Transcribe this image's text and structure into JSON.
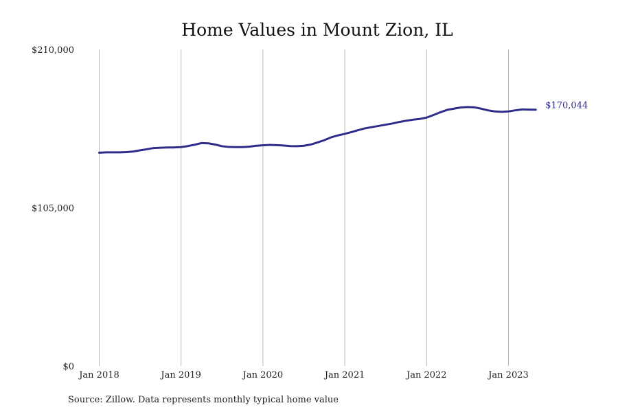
{
  "chart_data": {
    "type": "line",
    "title": "Home Values in Mount Zion, IL",
    "xlabel": "",
    "ylabel": "",
    "ylim": [
      0,
      210000
    ],
    "y_ticks": [
      {
        "value": 0,
        "label": "$0"
      },
      {
        "value": 105000,
        "label": "$105,000"
      },
      {
        "value": 210000,
        "label": "$210,000"
      }
    ],
    "x_ticks": [
      {
        "date": "2018-01",
        "label": "Jan 2018"
      },
      {
        "date": "2019-01",
        "label": "Jan 2019"
      },
      {
        "date": "2020-01",
        "label": "Jan 2020"
      },
      {
        "date": "2021-01",
        "label": "Jan 2021"
      },
      {
        "date": "2022-01",
        "label": "Jan 2022"
      },
      {
        "date": "2023-01",
        "label": "Jan 2023"
      }
    ],
    "grid": "vertical",
    "series": [
      {
        "color": "#2e2d8c",
        "end_label": "$170,044",
        "x": [
          "2018-01",
          "2018-02",
          "2018-03",
          "2018-04",
          "2018-05",
          "2018-06",
          "2018-07",
          "2018-08",
          "2018-09",
          "2018-10",
          "2018-11",
          "2018-12",
          "2019-01",
          "2019-02",
          "2019-03",
          "2019-04",
          "2019-05",
          "2019-06",
          "2019-07",
          "2019-08",
          "2019-09",
          "2019-10",
          "2019-11",
          "2019-12",
          "2020-01",
          "2020-02",
          "2020-03",
          "2020-04",
          "2020-05",
          "2020-06",
          "2020-07",
          "2020-08",
          "2020-09",
          "2020-10",
          "2020-11",
          "2020-12",
          "2021-01",
          "2021-02",
          "2021-03",
          "2021-04",
          "2021-05",
          "2021-06",
          "2021-07",
          "2021-08",
          "2021-09",
          "2021-10",
          "2021-11",
          "2021-12",
          "2022-01",
          "2022-02",
          "2022-03",
          "2022-04",
          "2022-05",
          "2022-06",
          "2022-07",
          "2022-08",
          "2022-09",
          "2022-10",
          "2022-11",
          "2022-12",
          "2023-01",
          "2023-02",
          "2023-03",
          "2023-04",
          "2023-05"
        ],
        "y": [
          141500,
          141700,
          141700,
          141700,
          141900,
          142300,
          143100,
          143800,
          144600,
          144800,
          145000,
          145000,
          145200,
          145900,
          146800,
          147900,
          147700,
          146900,
          145800,
          145300,
          145200,
          145200,
          145500,
          146100,
          146400,
          146700,
          146500,
          146300,
          145900,
          145800,
          146100,
          146900,
          148300,
          149800,
          151700,
          153000,
          154000,
          155200,
          156500,
          157700,
          158500,
          159300,
          160100,
          160900,
          161900,
          162700,
          163400,
          163900,
          164800,
          166500,
          168300,
          169900,
          170700,
          171500,
          171800,
          171600,
          170700,
          169600,
          168900,
          168600,
          168900,
          169600,
          170200,
          170100,
          170044
        ]
      }
    ]
  },
  "source_note": "Source: Zillow. Data represents monthly typical home value"
}
